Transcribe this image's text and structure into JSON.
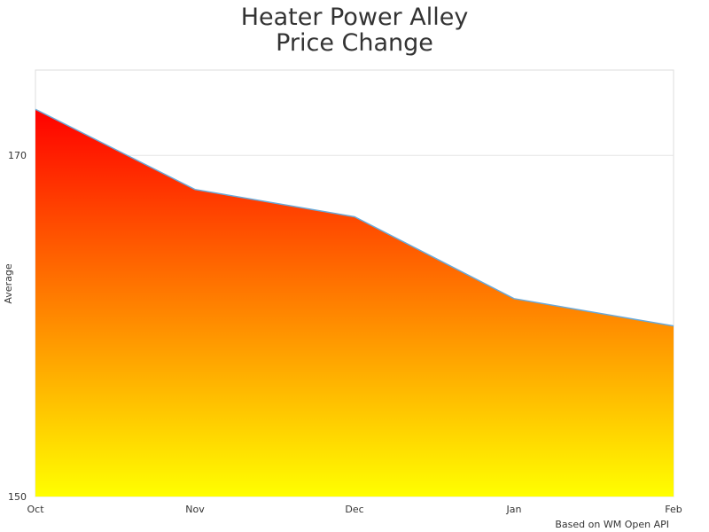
{
  "chart_data": {
    "type": "area",
    "title": [
      "Heater Power Alley",
      "Price Change"
    ],
    "y_label": "Average",
    "credits": "Based on WM Open API",
    "categories": [
      "Oct",
      "Nov",
      "Dec",
      "Jan",
      "Feb"
    ],
    "values": [
      172.7,
      168.0,
      166.4,
      161.6,
      160.0
    ],
    "ylim": [
      150,
      175
    ],
    "yticks": [
      150,
      170
    ],
    "grid": true,
    "gradient": [
      "#ff0000",
      "#ffff00"
    ],
    "line_color": "#6aa9d8"
  }
}
